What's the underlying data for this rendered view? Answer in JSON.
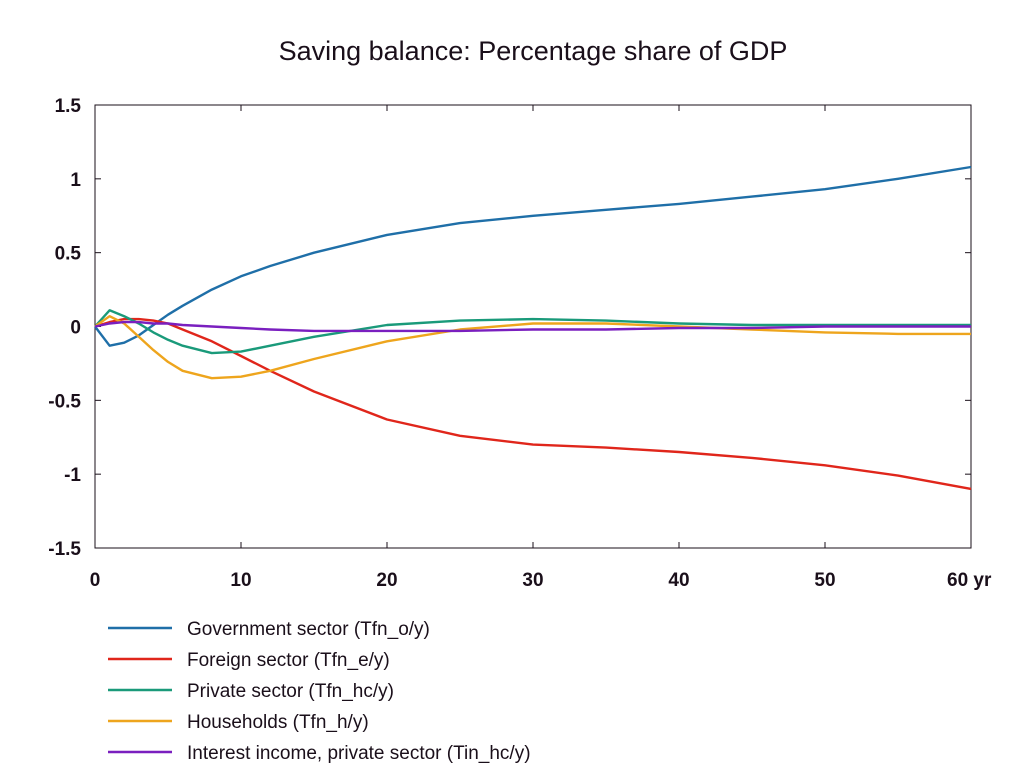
{
  "chart_data": {
    "type": "line",
    "title": "Saving balance: Percentage share of GDP",
    "xlabel": "",
    "ylabel": "",
    "xlim": [
      0,
      60
    ],
    "ylim": [
      -1.5,
      1.5
    ],
    "x_ticks": [
      0,
      10,
      20,
      30,
      40,
      50,
      60
    ],
    "x_tick_labels": [
      "0",
      "10",
      "20",
      "30",
      "40",
      "50",
      "60 yr"
    ],
    "y_ticks": [
      1.5,
      1,
      0.5,
      0,
      -0.5,
      -1,
      -1.5
    ],
    "y_tick_labels": [
      "1.5",
      "1",
      "0.5",
      "0",
      "-0.5",
      "-1",
      "-1.5"
    ],
    "grid": false,
    "legend_position": "bottom",
    "series": [
      {
        "name": "Government sector (Tfn_o/y)",
        "color": "#1f6fa8",
        "x": [
          0,
          1,
          2,
          3,
          4,
          5,
          6,
          8,
          10,
          12,
          15,
          20,
          25,
          30,
          35,
          40,
          45,
          50,
          55,
          60
        ],
        "values": [
          0,
          -0.13,
          -0.11,
          -0.06,
          0.01,
          0.08,
          0.14,
          0.25,
          0.34,
          0.41,
          0.5,
          0.62,
          0.7,
          0.75,
          0.79,
          0.83,
          0.88,
          0.93,
          1.0,
          1.08
        ]
      },
      {
        "name": "Foreign sector (Tfn_e/y)",
        "color": "#e0261b",
        "x": [
          0,
          1,
          2,
          3,
          4,
          5,
          6,
          8,
          10,
          12,
          15,
          20,
          25,
          30,
          35,
          40,
          45,
          50,
          55,
          60
        ],
        "values": [
          0,
          0.03,
          0.05,
          0.05,
          0.04,
          0.02,
          -0.02,
          -0.1,
          -0.2,
          -0.3,
          -0.44,
          -0.63,
          -0.74,
          -0.8,
          -0.82,
          -0.85,
          -0.89,
          -0.94,
          -1.01,
          -1.1
        ]
      },
      {
        "name": "Private sector (Tfn_hc/y)",
        "color": "#1a9a7a",
        "x": [
          0,
          1,
          2,
          3,
          4,
          5,
          6,
          8,
          10,
          12,
          15,
          20,
          25,
          30,
          35,
          40,
          45,
          50,
          55,
          60
        ],
        "values": [
          0,
          0.11,
          0.07,
          0.02,
          -0.04,
          -0.09,
          -0.13,
          -0.18,
          -0.17,
          -0.13,
          -0.07,
          0.01,
          0.04,
          0.05,
          0.04,
          0.02,
          0.01,
          0.01,
          0.01,
          0.01
        ]
      },
      {
        "name": "Households (Tfn_h/y)",
        "color": "#eea51d",
        "x": [
          0,
          1,
          2,
          3,
          4,
          5,
          6,
          8,
          10,
          12,
          15,
          20,
          25,
          30,
          35,
          40,
          45,
          50,
          55,
          60
        ],
        "values": [
          0,
          0.07,
          0.02,
          -0.07,
          -0.16,
          -0.24,
          -0.3,
          -0.35,
          -0.34,
          -0.3,
          -0.22,
          -0.1,
          -0.02,
          0.02,
          0.02,
          0.0,
          -0.02,
          -0.04,
          -0.05,
          -0.05
        ]
      },
      {
        "name": "Interest income, private sector (Tin_hc/y)",
        "color": "#7a1fbf",
        "x": [
          0,
          1,
          2,
          3,
          4,
          5,
          6,
          8,
          10,
          12,
          15,
          20,
          25,
          30,
          35,
          40,
          45,
          50,
          55,
          60
        ],
        "values": [
          0,
          0.02,
          0.03,
          0.03,
          0.02,
          0.02,
          0.01,
          0.0,
          -0.01,
          -0.02,
          -0.03,
          -0.03,
          -0.03,
          -0.02,
          -0.02,
          -0.01,
          -0.01,
          0.0,
          0.0,
          0.0
        ]
      }
    ]
  }
}
